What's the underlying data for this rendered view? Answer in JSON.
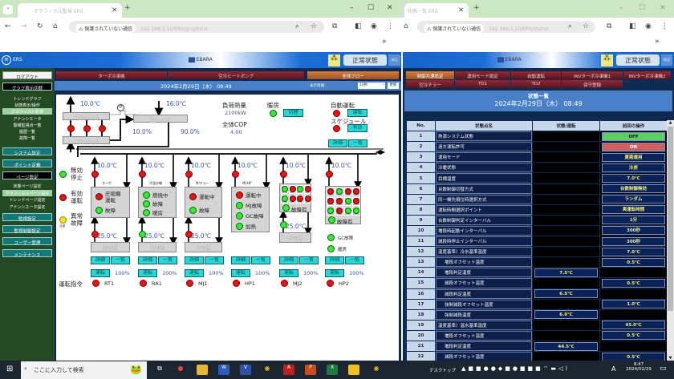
{
  "browser_left": {
    "tab_title": "グラフィカル監視 ERS",
    "new_tab": "+",
    "security": "保護されていない通信",
    "url": "192.168.1.10/ERS/graphical",
    "bookmarks_more": "»"
  },
  "browser_right": {
    "tab_title": "状態一覧 ERS",
    "new_tab": "+",
    "security": "保護されていない通信",
    "url": "192.168.1.10/ERS/status",
    "bookmarks_more": "»"
  },
  "app": {
    "name": "ERS",
    "brand": "EBARA",
    "status": "正常状態",
    "small_button": "確認"
  },
  "sidebar": {
    "logout": "ログアウト",
    "graph_switch": "グラフ表示切替",
    "graph_items": [
      "トレンドグラフ",
      "状態表示/操作",
      "グラフィカル監視",
      "アナンシエータ",
      "警報監視点一覧",
      "履歴一覧",
      "故障一覧"
    ],
    "system": "システム設定",
    "point": "ポイント定義",
    "page": "ページ設定",
    "page_items": [
      "状態ページ設定",
      "グラフィカルページ設定",
      "トレンドページ設定",
      "アナンシエータ設定"
    ],
    "monitor": "監視設定",
    "monitor_control": "監視制御設定",
    "users": "ユーザー管理",
    "maintenance": "メンテナンス"
  },
  "main": {
    "tabs": [
      "ターボ冷凍機",
      "空冷ヒートポンプ",
      "全体フロー"
    ],
    "datetime": "2024年2月29日（木） 08:49",
    "interval_label": "表示周期：",
    "interval_value": "10秒",
    "refresh": "更新"
  },
  "flow": {
    "secondary_header": "二次ヘッダ",
    "primary_header": "一次ヘッダ",
    "return_header": "還ヘッダ",
    "pump": "P",
    "supply_temp": "10.0℃",
    "return_temp": "16.0℃",
    "pct_left": "10.0%",
    "pct_right": "90.0%",
    "load_label": "負荷熱量",
    "load_value": "2100kW",
    "cop_label": "全体COP",
    "cop_value": "4.00",
    "heating_label": "暖房",
    "switch_btn": "切替",
    "auto_label": "自動運転",
    "run_btn": "運転",
    "schedule_label": "スケジュール",
    "valid_btn": "有効",
    "detail_btn": "詳細",
    "list_btn": "一覧",
    "legend": [
      {
        "text": "無効\n停止",
        "color": "green"
      },
      {
        "text": "有効\n運転",
        "color": "red"
      },
      {
        "text": "異常\n故障",
        "color": "yellow",
        "note": "点滅"
      }
    ],
    "command_label": "運転指令"
  },
  "units": [
    {
      "type": "ターボ",
      "out_temp": "10.0℃",
      "in_temp": "25.0℃",
      "top": "r",
      "bottom": "r",
      "tower": "冷却塔",
      "status": [
        {
          "t": "圧縮機\n運転",
          "c": "r"
        },
        {
          "t": "故障",
          "c": "g"
        }
      ],
      "pct": "100%",
      "run": "運転",
      "detail": "詳細",
      "list": "一覧",
      "name": "RT1"
    },
    {
      "type": "冷温水機",
      "out_temp": "10.0℃",
      "in_temp": "25.0℃",
      "top": "r",
      "bottom": "g",
      "tower": "冷却塔",
      "status": [
        {
          "t": "燃焼中",
          "c": "g"
        },
        {
          "t": "故障",
          "c": "g"
        },
        {
          "t": "暖房",
          "c": "g"
        }
      ],
      "pct": "100%",
      "run": "運転",
      "detail": "詳細",
      "list": "一覧",
      "name": "RA1"
    },
    {
      "type": "M/チラー",
      "out_temp": "10.0℃",
      "in_temp": "25.0℃",
      "top": "r",
      "bottom": "r",
      "tower": "冷却塔",
      "status": [
        {
          "t": "運転中",
          "c": "r"
        },
        {
          "t": "故障",
          "c": "g"
        }
      ],
      "pct": "100%",
      "run": "運転",
      "detail": "詳細",
      "list": "一覧",
      "name": "MJ1"
    },
    {
      "type": "MJ-HP",
      "out_temp": "10.0℃",
      "top": "r",
      "status": [
        {
          "t": "運転中",
          "c": "r"
        },
        {
          "t": "MJ故障",
          "c": "g"
        },
        {
          "t": "GC故障",
          "c": "g"
        },
        {
          "t": "加熱",
          "c": "g"
        }
      ],
      "pct": "100%",
      "run": "運転",
      "detail": "詳細",
      "list": "一覧",
      "name": "HP1"
    },
    {
      "type": "",
      "out_temp": "10.0℃",
      "in_temp": "25.0℃",
      "top": "r",
      "bottom": "g",
      "tower": "冷却塔",
      "grid": [
        "g",
        "r",
        "g",
        "r",
        "g",
        "r",
        "r",
        "r"
      ],
      "fault": "故障有",
      "fault_c": "g",
      "pct": "100%",
      "run": "運転",
      "detail": "詳細",
      "list": "一覧",
      "name": "MJ2"
    },
    {
      "type": "",
      "out_temp": "10.0℃",
      "top": "r",
      "grid": [
        "r",
        "g",
        "r",
        "r",
        "r",
        "r",
        "g",
        "r",
        "g",
        "r",
        "g",
        "g"
      ],
      "fault": "故障有",
      "fault_c": "g",
      "extra": [
        {
          "t": "GC故障",
          "c": "g"
        },
        {
          "t": "暖房",
          "c": "g"
        }
      ],
      "pct": "100%",
      "run": "運転",
      "detail": "詳細",
      "list": "一覧",
      "name": "HP2"
    }
  ],
  "right": {
    "tabs_row1": [
      "制御共通設定",
      "運用モード設定",
      "自動運転",
      "INVターボ冷凍機1",
      "INVターボ冷凍機2"
    ],
    "tabs_row2": [
      "空冷チラー",
      "TD1",
      "TD2",
      "保守登録"
    ],
    "title": "状態一覧",
    "datetime": "2024年2月29日（木） 08:49",
    "columns": [
      "No.",
      "状態点名",
      "状態/運転",
      "前回の操作"
    ],
    "rows": [
      {
        "no": "1",
        "name": "熱源システム状態",
        "state": "",
        "prev": "OFF",
        "kind": "off"
      },
      {
        "no": "2",
        "name": "遠方運転許可",
        "state": "",
        "prev": "ON",
        "kind": "on"
      },
      {
        "no": "3",
        "name": "運用モード",
        "state": "",
        "prev": "夏期運用"
      },
      {
        "no": "4",
        "name": "冷暖状態",
        "state": "",
        "prev": "冷房"
      },
      {
        "no": "5",
        "name": "目標温度",
        "state": "",
        "prev": "7.0℃"
      },
      {
        "no": "6",
        "name": "台数制御切替方式",
        "state": "",
        "prev": "台数制御無効"
      },
      {
        "no": "7",
        "name": "同一機先順位時選択方式",
        "state": "",
        "prev": "ランダム"
      },
      {
        "no": "8",
        "name": "運転時間選択ポイント",
        "state": "",
        "prev": "実運転時間"
      },
      {
        "no": "9",
        "name": "台数制御判定インターバル",
        "state": "",
        "prev": "1分"
      },
      {
        "no": "10",
        "name": "増段時起動インターバル",
        "state": "",
        "prev": "300秒"
      },
      {
        "no": "11",
        "name": "減段時停止インターバル",
        "state": "",
        "prev": "300秒"
      },
      {
        "no": "12",
        "name": "温度基準）冷水基準温度",
        "state": "",
        "prev": "7.0℃"
      },
      {
        "no": "13",
        "name": "増段オフセット温度",
        "state": "",
        "prev": "0.5℃",
        "sub": true
      },
      {
        "no": "14",
        "name": "増段判定温度",
        "state": "7.5℃",
        "prev": "",
        "sub": true
      },
      {
        "no": "15",
        "name": "減段オフセット温度",
        "state": "",
        "prev": "0.5℃",
        "sub": true
      },
      {
        "no": "16",
        "name": "減段判定温度",
        "state": "6.5℃",
        "prev": "",
        "sub": true
      },
      {
        "no": "17",
        "name": "強制減段オフセット温度",
        "state": "",
        "prev": "1.0℃",
        "sub": true
      },
      {
        "no": "18",
        "name": "強制減段温度",
        "state": "6.0℃",
        "prev": "",
        "sub": true
      },
      {
        "no": "19",
        "name": "温度基準）温水基準温度",
        "state": "",
        "prev": "45.0℃"
      },
      {
        "no": "20",
        "name": "増段オフセット温度",
        "state": "",
        "prev": "0.5℃",
        "sub": true
      },
      {
        "no": "21",
        "name": "増段判定温度",
        "state": "44.5℃",
        "prev": "",
        "sub": true
      },
      {
        "no": "22",
        "name": "減段オフセット温度",
        "state": "",
        "prev": "0.5℃",
        "sub": true
      }
    ]
  },
  "taskbar": {
    "search_placeholder": "ここに入力して検索",
    "desktop": "デスクトップ",
    "time": "8:47",
    "date": "2024/02/29",
    "ime": "A"
  },
  "colors": {
    "run_red": "#ee1111",
    "stop_green": "#33ee33",
    "button_cyan": "#28d8d8",
    "header_blue": "#1464c8",
    "navy": "#0f2a50",
    "tab_maroon": "#8a2a38",
    "active_tab": "#c07030"
  }
}
